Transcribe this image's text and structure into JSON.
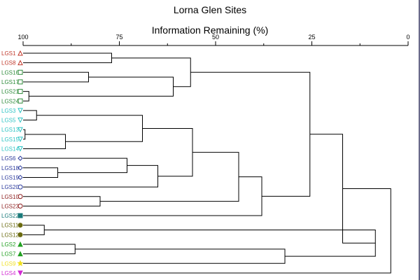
{
  "chart_data": {
    "type": "dendrogram",
    "title": "Lorna Glen Sites",
    "xlabel": "Information Remaining (%)",
    "x_ticks": [
      "100",
      "75",
      "50",
      "25",
      "0"
    ],
    "x_tick_values": [
      100,
      75,
      50,
      25,
      0
    ],
    "x_minor_ticks": [
      87.5,
      62.5,
      37.5,
      12.5
    ],
    "xlim": [
      100,
      0
    ],
    "leaves": [
      {
        "label": "LGS1",
        "marker": "triangle-up-open",
        "color": "#c0392b"
      },
      {
        "label": "LGS8",
        "marker": "triangle-up-open",
        "color": "#c0392b"
      },
      {
        "label": "LGS16",
        "marker": "square-open",
        "color": "#2e8b3a"
      },
      {
        "label": "LGS17",
        "marker": "square-open",
        "color": "#2e8b3a"
      },
      {
        "label": "LGS21",
        "marker": "square-open",
        "color": "#2e8b3a"
      },
      {
        "label": "LGS24",
        "marker": "square-open",
        "color": "#2e8b3a"
      },
      {
        "label": "LGS3",
        "marker": "triangle-down-open",
        "color": "#2ec4c4"
      },
      {
        "label": "LGS5",
        "marker": "triangle-down-open",
        "color": "#2ec4c4"
      },
      {
        "label": "LGS13",
        "marker": "triangle-down-open",
        "color": "#2ec4c4"
      },
      {
        "label": "LGS15",
        "marker": "triangle-down-open",
        "color": "#2ec4c4"
      },
      {
        "label": "LGS14",
        "marker": "triangle-down-open",
        "color": "#2ec4c4"
      },
      {
        "label": "LGS6",
        "marker": "diamond-open",
        "color": "#2b3a9c"
      },
      {
        "label": "LGS18",
        "marker": "diamond-open",
        "color": "#2b3a9c"
      },
      {
        "label": "LGS19",
        "marker": "diamond-open",
        "color": "#2b3a9c"
      },
      {
        "label": "LGS20",
        "marker": "circle-open",
        "color": "#2b3a9c"
      },
      {
        "label": "LGS10",
        "marker": "circle-open",
        "color": "#8b1a1a"
      },
      {
        "label": "LGS23",
        "marker": "circle-open",
        "color": "#8b1a1a"
      },
      {
        "label": "LGS22",
        "marker": "square-filled",
        "color": "#1a7a7a"
      },
      {
        "label": "LGS11",
        "marker": "circle-filled",
        "color": "#6b6b10"
      },
      {
        "label": "LGS12",
        "marker": "circle-filled",
        "color": "#6b6b10"
      },
      {
        "label": "LGS2",
        "marker": "triangle-up-filled",
        "color": "#22a022"
      },
      {
        "label": "LGS7",
        "marker": "triangle-up-filled",
        "color": "#22a022"
      },
      {
        "label": "LGS9",
        "marker": "star-filled",
        "color": "#f0e020"
      },
      {
        "label": "LGS4",
        "marker": "triangle-down-filled",
        "color": "#d22ad2"
      }
    ],
    "merges": [
      {
        "id": "A",
        "a": "L0",
        "b": "L1",
        "height": 77.0
      },
      {
        "id": "B",
        "a": "L2",
        "b": "L3",
        "height": 83.0
      },
      {
        "id": "C",
        "a": "L4",
        "b": "L5",
        "height": 98.5
      },
      {
        "id": "D",
        "a": "B",
        "b": "C",
        "height": 61.0
      },
      {
        "id": "E",
        "a": "A",
        "b": "D",
        "height": 56.5
      },
      {
        "id": "F",
        "a": "L6",
        "b": "L7",
        "height": 96.5
      },
      {
        "id": "G",
        "a": "L8",
        "b": "L9",
        "height": 99.5
      },
      {
        "id": "H",
        "a": "G",
        "b": "L10",
        "height": 89.0
      },
      {
        "id": "I",
        "a": "F",
        "b": "H",
        "height": 69.0
      },
      {
        "id": "J",
        "a": "L12",
        "b": "L13",
        "height": 91.0
      },
      {
        "id": "K",
        "a": "L11",
        "b": "J",
        "height": 73.0
      },
      {
        "id": "M",
        "a": "K",
        "b": "L14",
        "height": 65.0
      },
      {
        "id": "N",
        "a": "I",
        "b": "M",
        "height": 56.0
      },
      {
        "id": "O",
        "a": "L15",
        "b": "L16",
        "height": 80.0
      },
      {
        "id": "P",
        "a": "N",
        "b": "O",
        "height": 44.0
      },
      {
        "id": "Q",
        "a": "P",
        "b": "L17",
        "height": 38.0
      },
      {
        "id": "R",
        "a": "E",
        "b": "Q",
        "height": 25.5
      },
      {
        "id": "S",
        "a": "L18",
        "b": "L19",
        "height": 94.5
      },
      {
        "id": "T",
        "a": "L20",
        "b": "L21",
        "height": 86.5
      },
      {
        "id": "U",
        "a": "T",
        "b": "L22",
        "height": 32.0
      },
      {
        "id": "V",
        "a": "S",
        "b": "U",
        "height": 8.5
      },
      {
        "id": "W",
        "a": "R",
        "b": "V",
        "height": 17.0
      },
      {
        "id": "X",
        "a": "W",
        "b": "L23",
        "height": 4.5
      }
    ]
  },
  "colors": {
    "line": "#000000",
    "frame": "#6a6a8a"
  }
}
